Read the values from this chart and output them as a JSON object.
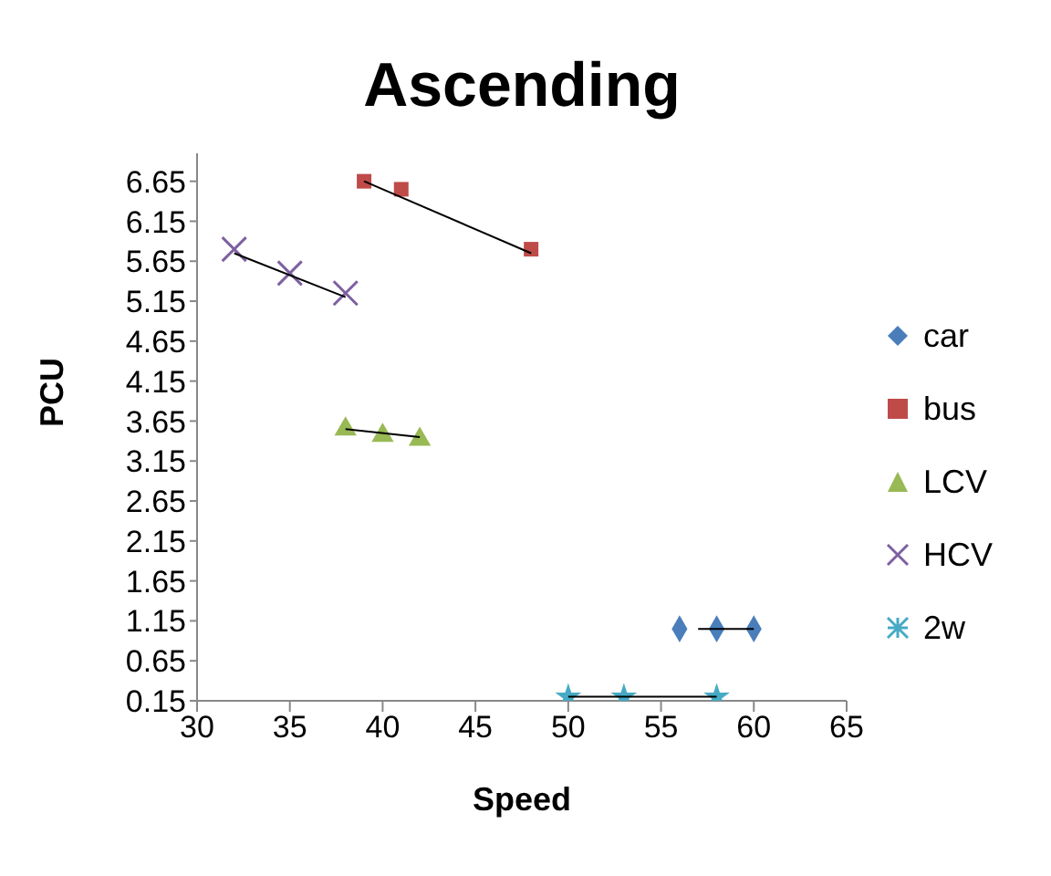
{
  "chart_data": {
    "type": "scatter",
    "title": "Ascending",
    "xlabel": "Speed",
    "ylabel": "PCU",
    "xlim": [
      30,
      65
    ],
    "xticks": [
      30,
      35,
      40,
      45,
      50,
      55,
      60,
      65
    ],
    "ylim": [
      0.15,
      7.0
    ],
    "yticks": [
      0.15,
      0.65,
      1.15,
      1.65,
      2.15,
      2.65,
      3.15,
      3.65,
      4.15,
      4.65,
      5.15,
      5.65,
      6.15,
      6.65
    ],
    "grid": false,
    "legend": "right",
    "series": [
      {
        "name": "car",
        "color": "#4a7ebb",
        "marker": "diamond",
        "x": [
          56,
          58,
          60
        ],
        "values": [
          1.05,
          1.05,
          1.05
        ]
      },
      {
        "name": "bus",
        "color": "#be4b48",
        "marker": "square",
        "x": [
          39,
          41,
          48
        ],
        "values": [
          6.65,
          6.55,
          5.8
        ]
      },
      {
        "name": "LCV",
        "color": "#98b954",
        "marker": "triangle",
        "x": [
          38,
          40,
          42
        ],
        "values": [
          3.55,
          3.47,
          3.42
        ]
      },
      {
        "name": "HCV",
        "color": "#7d60a0",
        "marker": "cross",
        "x": [
          32,
          35,
          38
        ],
        "values": [
          5.8,
          5.5,
          5.25
        ]
      },
      {
        "name": "2w",
        "color": "#46aac5",
        "marker": "star",
        "x": [
          50,
          53,
          58
        ],
        "values": [
          0.2,
          0.2,
          0.2
        ]
      },
      {
        "type": "line",
        "color": "#000000",
        "marker": "none",
        "x": [
          57,
          60
        ],
        "values": [
          1.05,
          1.05
        ]
      },
      {
        "type": "line",
        "color": "#000000",
        "marker": "none",
        "x": [
          39,
          48
        ],
        "values": [
          6.65,
          5.75
        ]
      },
      {
        "type": "line",
        "color": "#000000",
        "marker": "none",
        "x": [
          38,
          42
        ],
        "values": [
          3.55,
          3.45
        ]
      },
      {
        "type": "line",
        "color": "#000000",
        "marker": "none",
        "x": [
          32,
          38
        ],
        "values": [
          5.75,
          5.2
        ]
      },
      {
        "type": "line",
        "color": "#000000",
        "marker": "none",
        "x": [
          50,
          58
        ],
        "values": [
          0.2,
          0.2
        ]
      }
    ]
  }
}
